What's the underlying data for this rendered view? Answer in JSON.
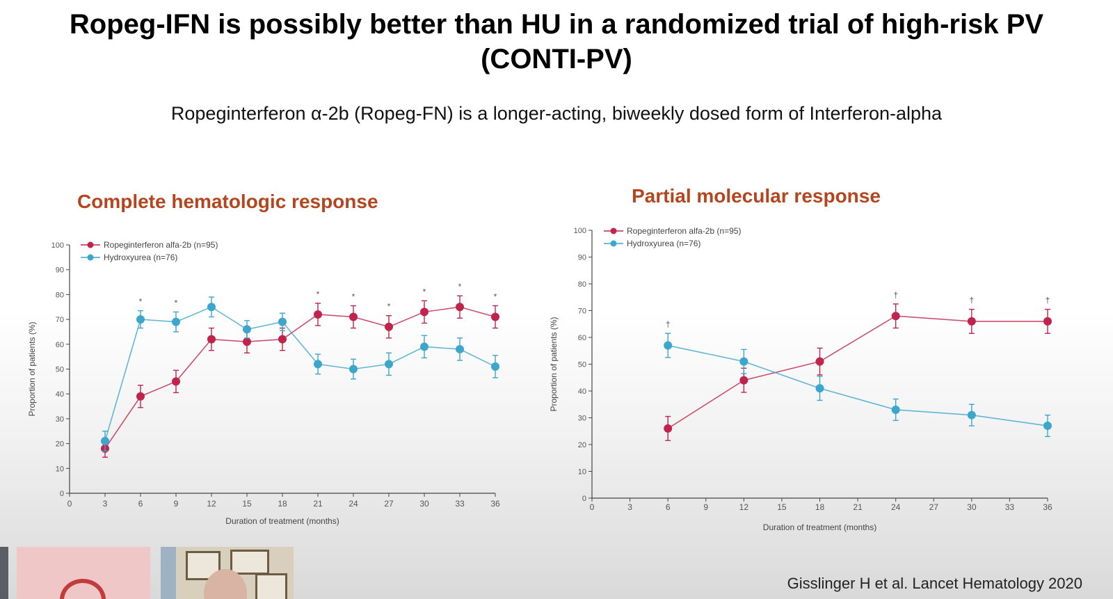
{
  "slide": {
    "title_line1": "Ropeg-IFN is possibly better than HU in a randomized trial of high-risk PV",
    "title_line2": "(CONTI-PV)",
    "subtitle": "Ropeginterferon α-2b (Ropeg-FN) is a longer-acting, biweekly dosed form of Interferon-alpha",
    "citation": "Gisslinger H et al. Lancet Hematology 2020"
  },
  "colors": {
    "ropeg": "#c0244d",
    "hu": "#3ca6cc",
    "chart_title": "#b5451f",
    "axis": "#444444"
  },
  "video_thumbnails": [
    {
      "name": "participant-edge"
    },
    {
      "name": "mpn-logo-thumbnail"
    },
    {
      "name": "speaker-camera-thumbnail"
    }
  ],
  "chart_data": [
    {
      "type": "line",
      "title": "Complete hematologic response",
      "xlabel": "Duration of treatment (months)",
      "ylabel": "Proportion of patients (%)",
      "xlim": [
        0,
        36
      ],
      "ylim": [
        0,
        100
      ],
      "xticks": [
        0,
        3,
        6,
        9,
        12,
        15,
        18,
        21,
        24,
        27,
        30,
        33,
        36
      ],
      "yticks": [
        0,
        10,
        20,
        30,
        40,
        50,
        60,
        70,
        80,
        90,
        100
      ],
      "legend_position": "top-left",
      "series": [
        {
          "name": "Ropeginterferon alfa-2b (n=95)",
          "color_key": "ropeg",
          "x": [
            3,
            6,
            9,
            12,
            15,
            18,
            21,
            24,
            27,
            30,
            33,
            36
          ],
          "y": [
            18,
            39,
            45,
            62,
            61,
            62,
            72,
            71,
            67,
            73,
            75,
            71
          ],
          "err": [
            3.5,
            4.5,
            4.5,
            4.5,
            4.5,
            4.5,
            4.5,
            4.5,
            4.5,
            4.5,
            4.5,
            4.5
          ]
        },
        {
          "name": "Hydroxyurea (n=76)",
          "color_key": "hu",
          "x": [
            3,
            6,
            9,
            12,
            15,
            18,
            21,
            24,
            27,
            30,
            33,
            36
          ],
          "y": [
            21,
            70,
            69,
            75,
            66,
            69,
            52,
            50,
            52,
            59,
            58,
            51
          ],
          "err": [
            4,
            3.5,
            4,
            4,
            3.5,
            3.5,
            4,
            4,
            4.5,
            4.5,
            4.5,
            4.5
          ]
        }
      ],
      "annotations": [
        {
          "x": 6,
          "text": "*"
        },
        {
          "x": 9,
          "text": "*"
        },
        {
          "x": 21,
          "text": "*"
        },
        {
          "x": 24,
          "text": "*"
        },
        {
          "x": 27,
          "text": "*"
        },
        {
          "x": 30,
          "text": "*"
        },
        {
          "x": 33,
          "text": "*"
        },
        {
          "x": 36,
          "text": "*"
        }
      ]
    },
    {
      "type": "line",
      "title": "Partial molecular response",
      "xlabel": "Duration of treatment (months)",
      "ylabel": "Proportion of patients (%)",
      "xlim": [
        0,
        36
      ],
      "ylim": [
        0,
        100
      ],
      "xticks": [
        0,
        3,
        6,
        9,
        12,
        15,
        18,
        21,
        24,
        27,
        30,
        33,
        36
      ],
      "yticks": [
        0,
        10,
        20,
        30,
        40,
        50,
        60,
        70,
        80,
        90,
        100
      ],
      "legend_position": "top-left",
      "series": [
        {
          "name": "Ropeginterferon alfa-2b (n=95)",
          "color_key": "ropeg",
          "x": [
            6,
            12,
            18,
            24,
            30,
            36
          ],
          "y": [
            26,
            44,
            51,
            68,
            66,
            66
          ],
          "err": [
            4.5,
            4.5,
            5,
            4.5,
            4.5,
            4.5
          ]
        },
        {
          "name": "Hydroxyurea (n=76)",
          "color_key": "hu",
          "x": [
            6,
            12,
            18,
            24,
            30,
            36
          ],
          "y": [
            57,
            51,
            41,
            33,
            31,
            27
          ],
          "err": [
            4.5,
            4.5,
            4.5,
            4,
            4,
            4
          ]
        }
      ],
      "annotations": [
        {
          "x": 6,
          "text": "†"
        },
        {
          "x": 24,
          "text": "†"
        },
        {
          "x": 30,
          "text": "†"
        },
        {
          "x": 36,
          "text": "†"
        }
      ]
    }
  ]
}
